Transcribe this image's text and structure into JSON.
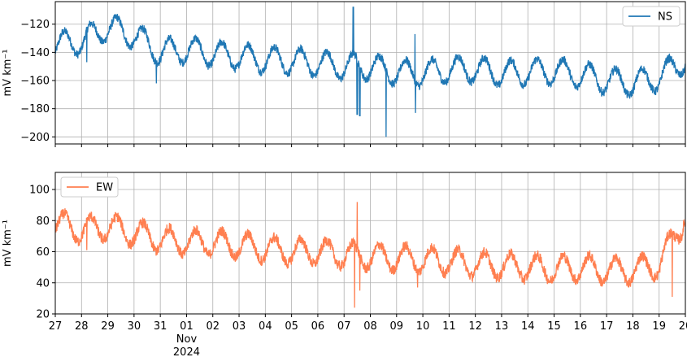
{
  "chart_data": [
    {
      "type": "line",
      "ylabel": "mV km⁻¹",
      "ylim": [
        -205,
        -104
      ],
      "yticks": [
        -120,
        -140,
        -160,
        -180,
        -200
      ],
      "ytick_labels": [
        "−120",
        "−140",
        "−160",
        "−180",
        "−200"
      ],
      "grid": true,
      "legend_position": "top-right",
      "series": [
        {
          "name": "NS",
          "color": "#1f77b4",
          "x": [
            0,
            1,
            2,
            3,
            4,
            5,
            6,
            7,
            8,
            9,
            10,
            11,
            12,
            13,
            14,
            15,
            16,
            17,
            18,
            19,
            20,
            21,
            22,
            23,
            24,
            25
          ],
          "y": [
            -135,
            -132,
            -122,
            -128,
            -140,
            -138,
            -141,
            -143,
            -145,
            -146,
            -148,
            -150,
            -150,
            -154,
            -155,
            -152,
            -152,
            -155,
            -154,
            -153,
            -156,
            -160,
            -162,
            -158,
            -145,
            -148
          ]
        }
      ]
    },
    {
      "type": "line",
      "ylabel": "mV km⁻¹",
      "ylim": [
        20,
        111
      ],
      "yticks": [
        20,
        40,
        60,
        80,
        100
      ],
      "ytick_labels": [
        "20",
        "40",
        "60",
        "80",
        "100"
      ],
      "grid": true,
      "legend_position": "top-left",
      "series": [
        {
          "name": "EW",
          "color": "#ff7f50",
          "x": [
            0,
            1,
            2,
            3,
            4,
            5,
            6,
            7,
            8,
            9,
            10,
            11,
            12,
            13,
            14,
            15,
            16,
            17,
            18,
            19,
            20,
            21,
            22,
            23,
            24,
            25
          ],
          "y": [
            78,
            74,
            76,
            72,
            68,
            66,
            66,
            64,
            62,
            60,
            60,
            58,
            57,
            56,
            55,
            54,
            52,
            51,
            50,
            49,
            50,
            48,
            48,
            52,
            82,
            64
          ]
        }
      ]
    }
  ],
  "xaxis": {
    "start": "2024-10-27",
    "end": "2024-11-20",
    "tick_labels": [
      "27",
      "28",
      "29",
      "30",
      "31",
      "01",
      "02",
      "03",
      "04",
      "05",
      "06",
      "07",
      "08",
      "09",
      "10",
      "11",
      "12",
      "13",
      "14",
      "15",
      "16",
      "17",
      "18",
      "19",
      "20"
    ],
    "month_label": "Nov",
    "year_label": "2024"
  }
}
